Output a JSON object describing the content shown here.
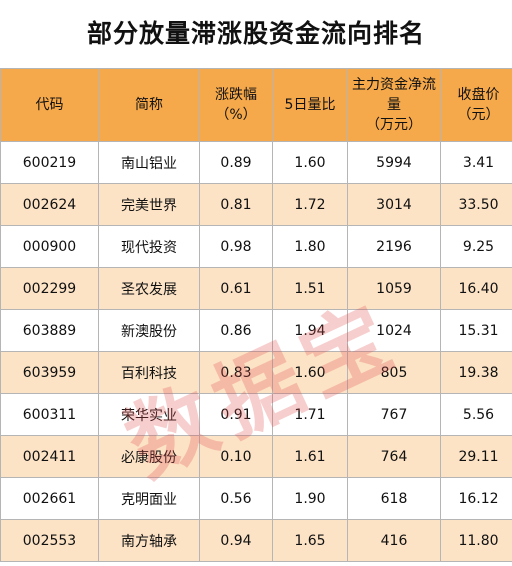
{
  "title": "部分放量滞涨股资金流向排名",
  "columns": [
    "代码",
    "简称",
    "涨跌幅（%）",
    "5日量比",
    "主力资金净流量（万元）",
    "收盘价（元）"
  ],
  "rows": [
    [
      "600219",
      "南山铝业",
      "0.89",
      "1.60",
      "5994",
      "3.41"
    ],
    [
      "002624",
      "完美世界",
      "0.81",
      "1.72",
      "3014",
      "33.50"
    ],
    [
      "000900",
      "现代投资",
      "0.98",
      "1.80",
      "2196",
      "9.25"
    ],
    [
      "002299",
      "圣农发展",
      "0.61",
      "1.51",
      "1059",
      "16.40"
    ],
    [
      "603889",
      "新澳股份",
      "0.86",
      "1.94",
      "1024",
      "15.31"
    ],
    [
      "603959",
      "百利科技",
      "0.83",
      "1.60",
      "805",
      "19.38"
    ],
    [
      "600311",
      "荣华实业",
      "0.91",
      "1.71",
      "767",
      "5.56"
    ],
    [
      "002411",
      "必康股份",
      "0.10",
      "1.61",
      "764",
      "29.11"
    ],
    [
      "002661",
      "克明面业",
      "0.56",
      "1.90",
      "618",
      "16.12"
    ],
    [
      "002553",
      "南方轴承",
      "0.94",
      "1.65",
      "416",
      "11.80"
    ]
  ],
  "watermark": "数据宝",
  "colors": {
    "header_bg": "#f6a94b",
    "stripe_bg": "#fce3c6",
    "border": "#b5b5b5",
    "watermark": "#e15050"
  }
}
